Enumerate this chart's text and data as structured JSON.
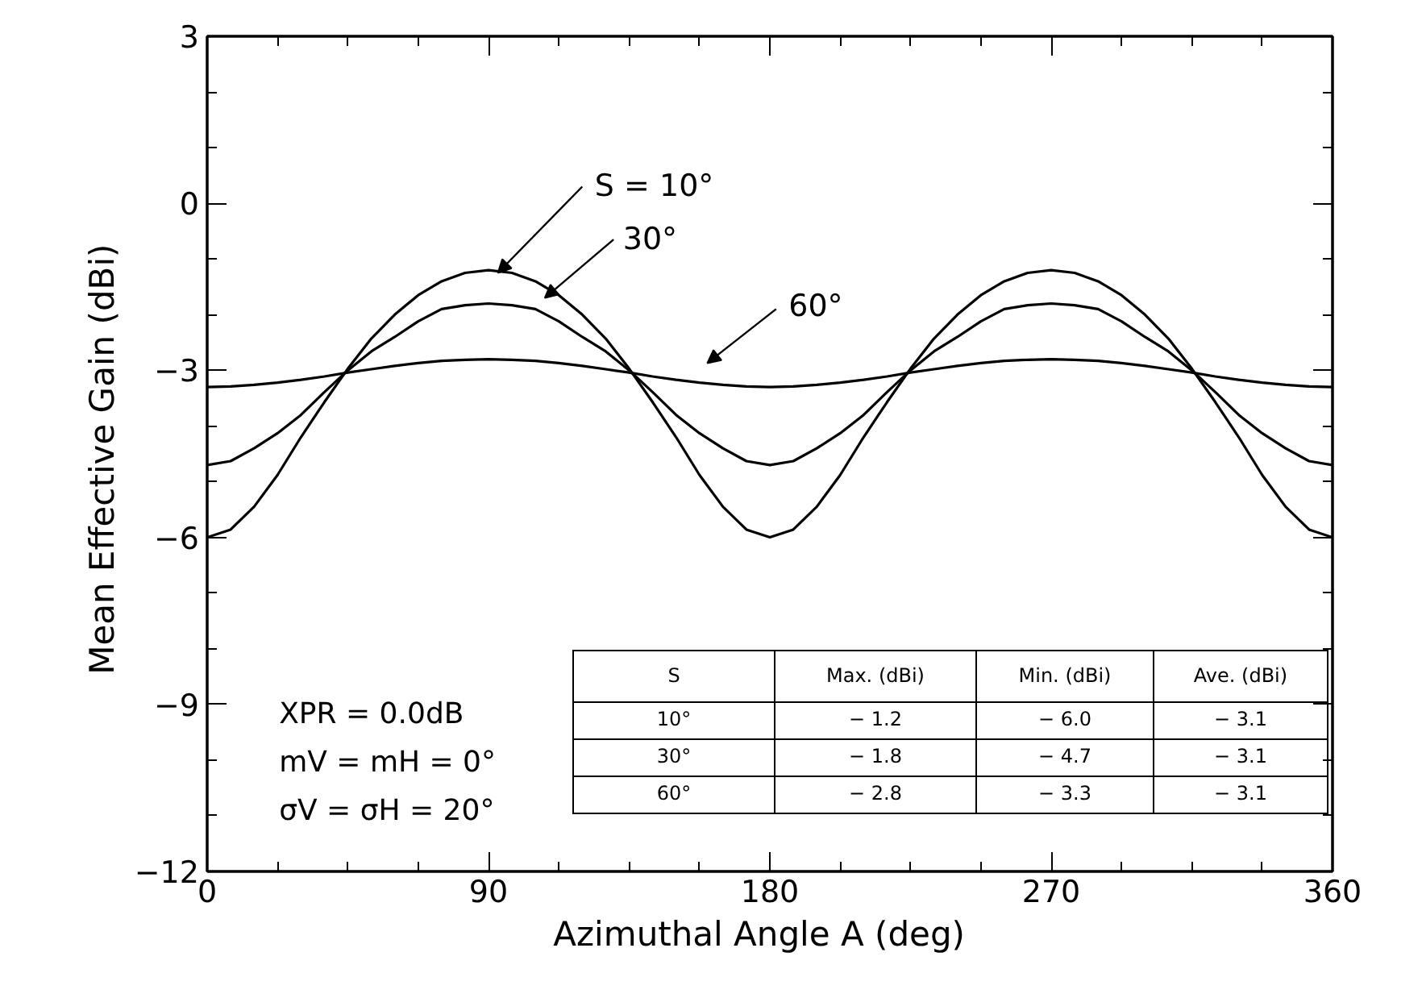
{
  "chart_data": {
    "type": "line",
    "xlabel": "Azimuthal Angle  A  (deg)",
    "ylabel": "Mean Effective Gain  (dBi)",
    "x": [
      0,
      7.5,
      15,
      22.5,
      30,
      37.5,
      45,
      52.5,
      60,
      67.5,
      75,
      82.5,
      90,
      97.5,
      105,
      112.5,
      120,
      127.5,
      135,
      142.5,
      150,
      157.5,
      165,
      172.5,
      180,
      187.5,
      195,
      202.5,
      210,
      217.5,
      225,
      232.5,
      240,
      247.5,
      255,
      262.5,
      270,
      277.5,
      285,
      292.5,
      300,
      307.5,
      315,
      322.5,
      330,
      337.5,
      345,
      352.5,
      360
    ],
    "series": [
      {
        "name": "S = 10°",
        "color": "#000000",
        "values": [
          -6.0,
          -5.86,
          -5.45,
          -4.88,
          -4.2,
          -3.57,
          -2.97,
          -2.43,
          -2.0,
          -1.65,
          -1.4,
          -1.25,
          -1.2,
          -1.25,
          -1.4,
          -1.65,
          -2.0,
          -2.43,
          -2.97,
          -3.57,
          -4.2,
          -4.88,
          -5.45,
          -5.86,
          -6.0,
          -5.86,
          -5.45,
          -4.88,
          -4.2,
          -3.57,
          -2.97,
          -2.43,
          -2.0,
          -1.65,
          -1.4,
          -1.25,
          -1.2,
          -1.25,
          -1.4,
          -1.65,
          -2.0,
          -2.43,
          -2.97,
          -3.57,
          -4.2,
          -4.88,
          -5.45,
          -5.86,
          -6.0
        ]
      },
      {
        "name": "30°",
        "color": "#000000",
        "values": [
          -4.7,
          -4.63,
          -4.4,
          -4.13,
          -3.8,
          -3.39,
          -3.0,
          -2.66,
          -2.4,
          -2.12,
          -1.9,
          -1.83,
          -1.8,
          -1.83,
          -1.9,
          -2.12,
          -2.4,
          -2.66,
          -3.0,
          -3.39,
          -3.8,
          -4.13,
          -4.4,
          -4.63,
          -4.7,
          -4.63,
          -4.4,
          -4.13,
          -3.8,
          -3.39,
          -3.0,
          -2.66,
          -2.4,
          -2.12,
          -1.9,
          -1.83,
          -1.8,
          -1.83,
          -1.9,
          -2.12,
          -2.4,
          -2.66,
          -3.0,
          -3.39,
          -3.8,
          -4.13,
          -4.4,
          -4.63,
          -4.7
        ]
      },
      {
        "name": "60°",
        "color": "#000000",
        "values": [
          -3.3,
          -3.29,
          -3.26,
          -3.22,
          -3.17,
          -3.11,
          -3.04,
          -2.98,
          -2.92,
          -2.87,
          -2.83,
          -2.81,
          -2.8,
          -2.81,
          -2.83,
          -2.87,
          -2.92,
          -2.98,
          -3.04,
          -3.11,
          -3.17,
          -3.22,
          -3.26,
          -3.29,
          -3.3,
          -3.29,
          -3.26,
          -3.22,
          -3.17,
          -3.11,
          -3.04,
          -2.98,
          -2.92,
          -2.87,
          -2.83,
          -2.81,
          -2.8,
          -2.81,
          -2.83,
          -2.87,
          -2.92,
          -2.98,
          -3.04,
          -3.11,
          -3.17,
          -3.22,
          -3.26,
          -3.29,
          -3.3
        ]
      }
    ],
    "xlim": [
      0,
      360
    ],
    "ylim": [
      -12,
      3
    ],
    "xticks": [
      0,
      {
        "value": 22.5,
        "label": null
      },
      {
        "value": 45,
        "label": null
      },
      {
        "value": 67.5,
        "label": null
      },
      90,
      {
        "value": 112.5,
        "label": null
      },
      {
        "value": 135,
        "label": null
      },
      {
        "value": 157.5,
        "label": null
      },
      180,
      {
        "value": 202.5,
        "label": null
      },
      {
        "value": 225,
        "label": null
      },
      {
        "value": 247.5,
        "label": null
      },
      270,
      {
        "value": 292.5,
        "label": null
      },
      {
        "value": 315,
        "label": null
      },
      {
        "value": 337.5,
        "label": null
      },
      360
    ],
    "yticks": [
      -12,
      {
        "value": -11,
        "label": null
      },
      {
        "value": -10,
        "label": null
      },
      -9,
      {
        "value": -8,
        "label": null
      },
      {
        "value": -7,
        "label": null
      },
      -6,
      {
        "value": -5,
        "label": null
      },
      {
        "value": -4,
        "label": null
      },
      -3,
      {
        "value": -2,
        "label": null
      },
      {
        "value": -1,
        "label": null
      },
      0,
      {
        "value": 1,
        "label": null
      },
      {
        "value": 2,
        "label": null
      },
      3
    ],
    "grid": false,
    "legend": false,
    "marker": "none",
    "line_style": "solid",
    "annotations": [
      "XPR = 0.0dB",
      "mV = mH = 0°",
      "σV = σH = 20°",
      "S",
      "Max. (dBi)",
      "Min. (dBi)",
      "Ave. (dBi)",
      "10°",
      "− 1.2",
      "− 6.0",
      "− 3.1",
      "30°",
      "− 1.8",
      "− 4.7",
      "− 3.1",
      "60°",
      "− 2.8",
      "− 3.3",
      "− 3.1"
    ]
  }
}
